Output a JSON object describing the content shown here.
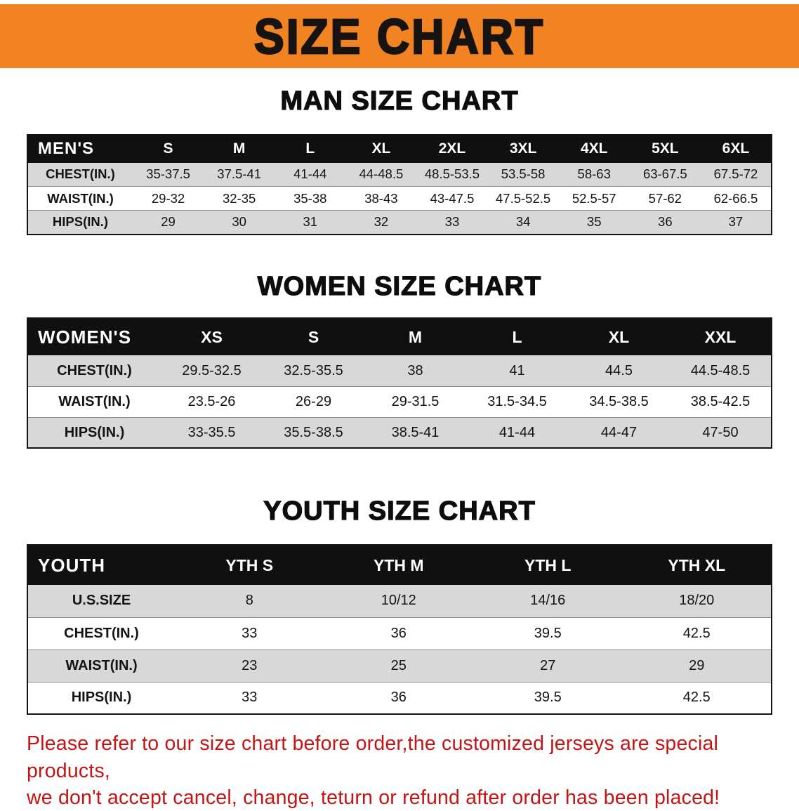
{
  "banner": {
    "title": "SIZE CHART"
  },
  "sections": [
    {
      "title": "MAN SIZE CHART",
      "table": {
        "header": [
          "MEN'S",
          "S",
          "M",
          "L",
          "XL",
          "2XL",
          "3XL",
          "4XL",
          "5XL",
          "6XL"
        ],
        "rows": [
          [
            "CHEST(IN.)",
            "35-37.5",
            "37.5-41",
            "41-44",
            "44-48.5",
            "48.5-53.5",
            "53.5-58",
            "58-63",
            "63-67.5",
            "67.5-72"
          ],
          [
            "WAIST(IN.)",
            "29-32",
            "32-35",
            "35-38",
            "38-43",
            "43-47.5",
            "47.5-52.5",
            "52.5-57",
            "57-62",
            "62-66.5"
          ],
          [
            "HIPS(IN.)",
            "29",
            "30",
            "31",
            "32",
            "33",
            "34",
            "35",
            "36",
            "37"
          ]
        ]
      }
    },
    {
      "title": "WOMEN SIZE CHART",
      "table": {
        "header": [
          "WOMEN'S",
          "XS",
          "S",
          "M",
          "L",
          "XL",
          "XXL"
        ],
        "rows": [
          [
            "CHEST(IN.)",
            "29.5-32.5",
            "32.5-35.5",
            "38",
            "41",
            "44.5",
            "44.5-48.5"
          ],
          [
            "WAIST(IN.)",
            "23.5-26",
            "26-29",
            "29-31.5",
            "31.5-34.5",
            "34.5-38.5",
            "38.5-42.5"
          ],
          [
            "HIPS(IN.)",
            "33-35.5",
            "35.5-38.5",
            "38.5-41",
            "41-44",
            "44-47",
            "47-50"
          ]
        ]
      }
    },
    {
      "title": "YOUTH SIZE CHART",
      "table": {
        "header": [
          "YOUTH",
          "YTH S",
          "YTH M",
          "YTH L",
          "YTH XL"
        ],
        "rows": [
          [
            "U.S.SIZE",
            "8",
            "10/12",
            "14/16",
            "18/20"
          ],
          [
            "CHEST(IN.)",
            "33",
            "36",
            "39.5",
            "42.5"
          ],
          [
            "WAIST(IN.)",
            "23",
            "25",
            "27",
            "29"
          ],
          [
            "HIPS(IN.)",
            "33",
            "36",
            "39.5",
            "42.5"
          ]
        ]
      }
    }
  ],
  "footer": {
    "line1": "Please refer to our size chart before order,the customized jerseys are special products,",
    "line2": "we don't accept cancel, change, teturn or refund after order has been placed!"
  },
  "colors": {
    "banner_bg": "#f28322",
    "header_bg": "#101010",
    "row_alt": "#d8d8d8",
    "footer_text": "#c41414"
  }
}
